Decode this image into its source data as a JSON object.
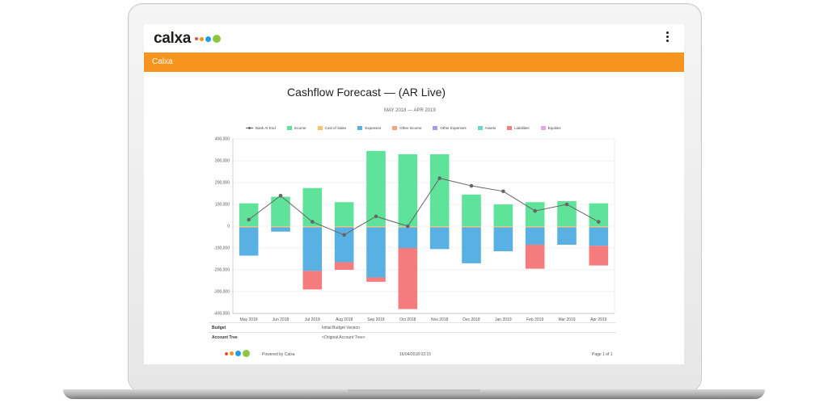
{
  "app": {
    "logo_text": "calxa",
    "logo_dot_colors": [
      "#e94e3d",
      "#f7941d",
      "#1ba1e2",
      "#8dc63f"
    ],
    "menu_icon": "kebab-menu-icon"
  },
  "banner": {
    "title": "Calxa",
    "color": "#f7941d"
  },
  "report": {
    "title": "Cashflow Forecast — (AR Live)",
    "subtitle": "MAY 2018 — APR 2019"
  },
  "info": [
    {
      "label": "Budget",
      "value": "Initial Budget Version"
    },
    {
      "label": "Account Tree",
      "value": "<Original Account Tree>"
    }
  ],
  "footer": {
    "powered": "Powered by Calxa",
    "date": "16/04/2018 02:15",
    "page": "Page 1 of 1"
  },
  "chart_data": {
    "type": "bar",
    "stacked": true,
    "categories": [
      "May 2018",
      "Jun 2018",
      "Jul 2018",
      "Aug 2018",
      "Sep 2018",
      "Oct 2018",
      "Nov 2018",
      "Dec 2018",
      "Jan 2019",
      "Feb 2019",
      "Mar 2019",
      "Apr 2019"
    ],
    "ylim": [
      -400000,
      400000
    ],
    "yticks": [
      "400,000",
      "300,000",
      "200,000",
      "100,000",
      "0",
      "-100,000",
      "-200,000",
      "-300,000",
      "-400,000"
    ],
    "legend_position": "top",
    "grid": true,
    "series": [
      {
        "name": "Bank At End",
        "kind": "line",
        "color": "#666666",
        "values": [
          30000,
          140000,
          20000,
          -40000,
          45000,
          0,
          220000,
          185000,
          160000,
          70000,
          100000,
          20000
        ]
      },
      {
        "name": "Income",
        "color": "#5fe39a",
        "values": [
          105000,
          135000,
          175000,
          110000,
          345000,
          330000,
          330000,
          145000,
          100000,
          110000,
          115000,
          105000
        ]
      },
      {
        "name": "Cost of Sales",
        "color": "#f7c46c",
        "values": [
          -5000,
          -5000,
          -5000,
          -5000,
          -5000,
          -5000,
          -5000,
          -5000,
          -5000,
          -5000,
          -5000,
          -5000
        ]
      },
      {
        "name": "Expenses",
        "color": "#58b0e3",
        "values": [
          -130000,
          -20000,
          -200000,
          -160000,
          -230000,
          -95000,
          -100000,
          -165000,
          -110000,
          -80000,
          -80000,
          -85000
        ]
      },
      {
        "name": "Other Income",
        "color": "#f4a37e",
        "values": [
          0,
          0,
          0,
          0,
          0,
          0,
          0,
          0,
          0,
          0,
          0,
          0
        ]
      },
      {
        "name": "Other Expenses",
        "color": "#a59be0",
        "values": [
          0,
          0,
          0,
          0,
          0,
          0,
          0,
          0,
          0,
          0,
          0,
          0
        ]
      },
      {
        "name": "Assets",
        "color": "#67d9c9",
        "values": [
          0,
          0,
          0,
          0,
          0,
          0,
          0,
          0,
          0,
          0,
          0,
          0
        ]
      },
      {
        "name": "Liabilities",
        "color": "#f47c7c",
        "values": [
          0,
          0,
          -85000,
          -35000,
          -20000,
          -280000,
          0,
          0,
          0,
          -110000,
          0,
          -90000
        ]
      },
      {
        "name": "Equities",
        "color": "#e8a6e8",
        "values": [
          0,
          0,
          0,
          0,
          0,
          0,
          0,
          0,
          0,
          0,
          0,
          0
        ]
      }
    ]
  }
}
